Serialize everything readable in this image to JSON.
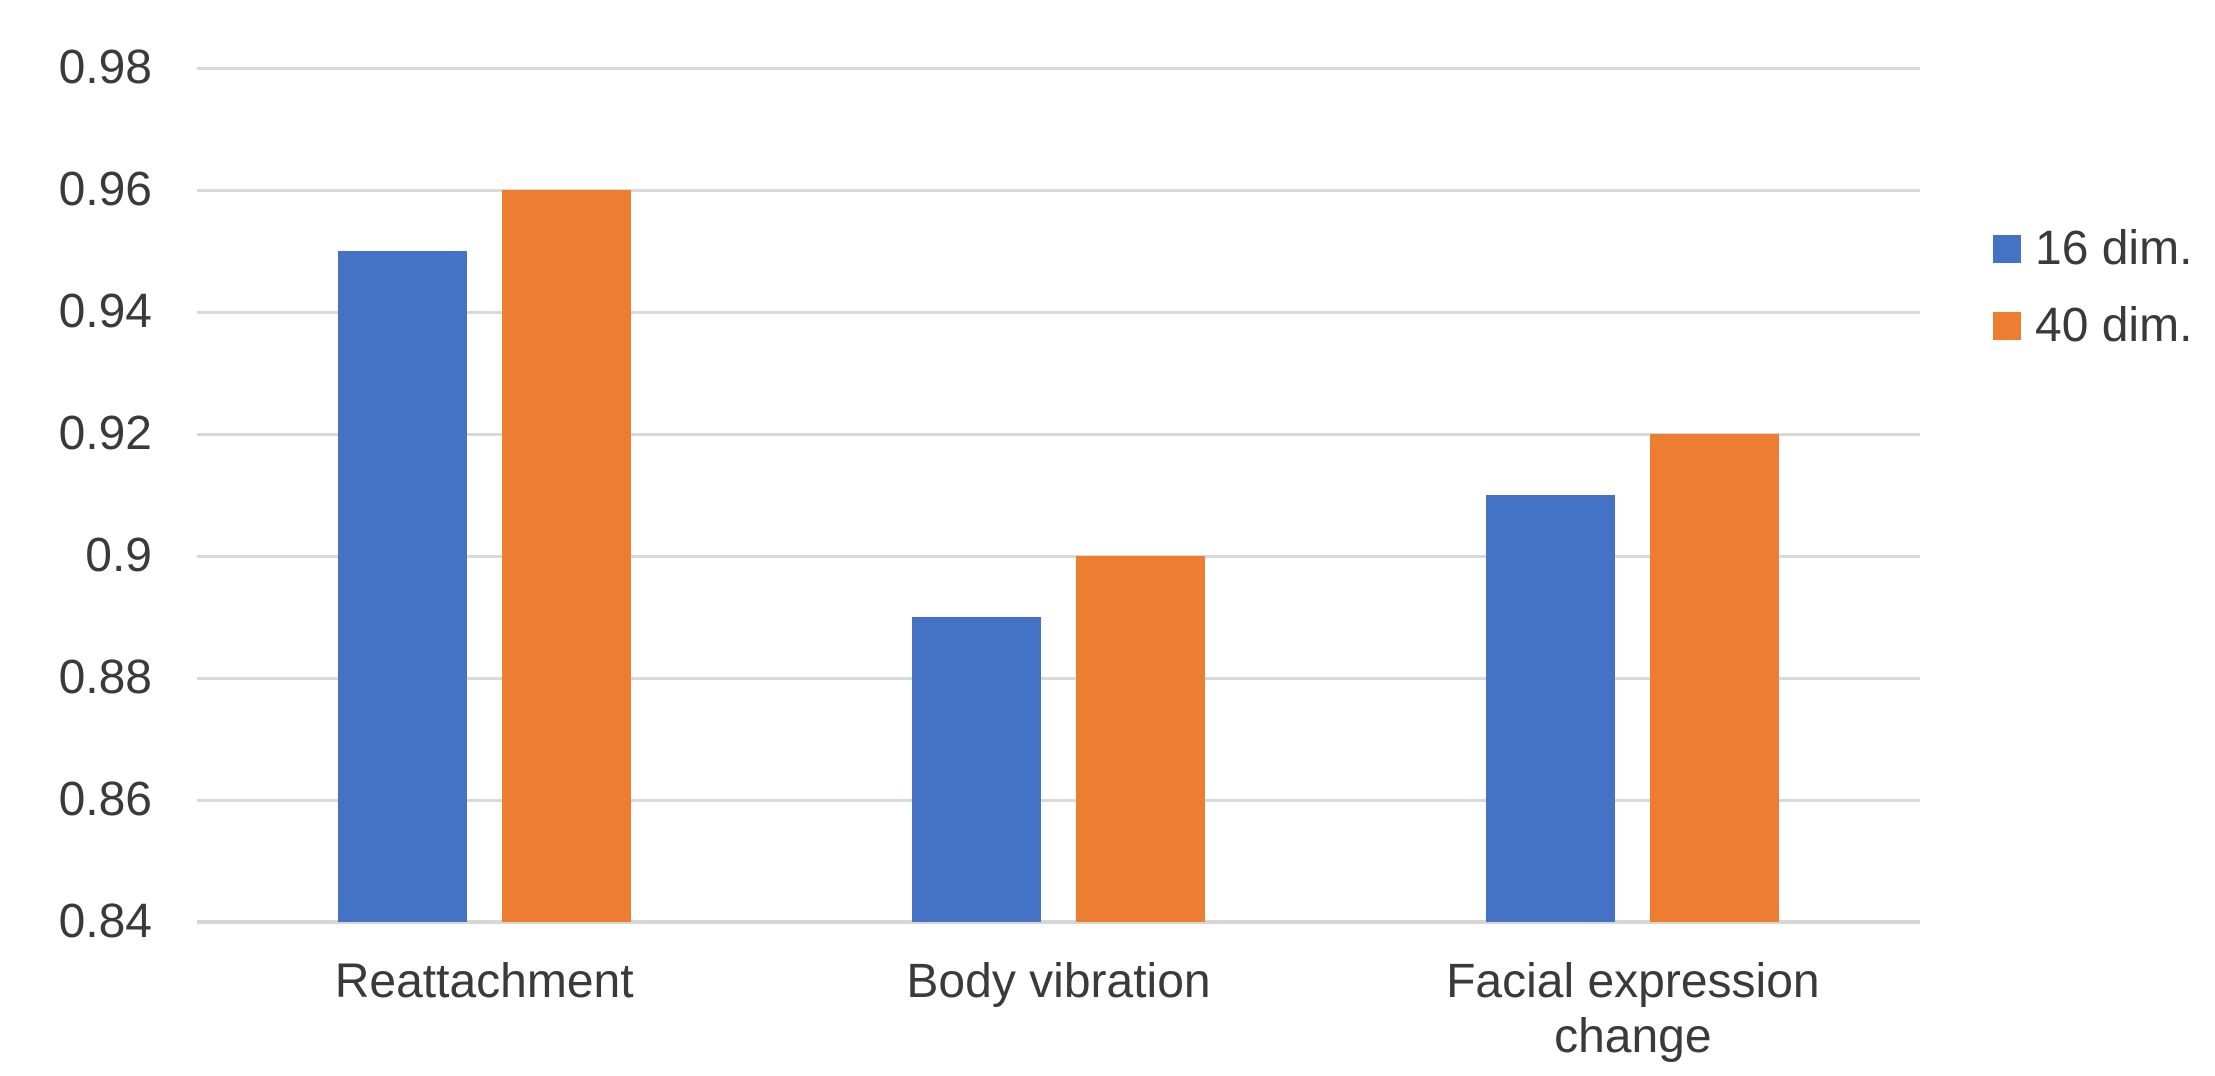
{
  "chart_data": {
    "type": "bar",
    "title": "",
    "xlabel": "",
    "ylabel": "",
    "categories": [
      "Reattachment",
      "Body vibration",
      "Facial expression change"
    ],
    "series": [
      {
        "name": "16 dim.",
        "color": "#4472C4",
        "values": [
          0.95,
          0.89,
          0.91
        ]
      },
      {
        "name": "40 dim.",
        "color": "#ED7D31",
        "values": [
          0.96,
          0.9,
          0.92
        ]
      }
    ],
    "ylim": [
      0.84,
      0.98
    ],
    "ytick_values": [
      0.84,
      0.86,
      0.88,
      0.9,
      0.92,
      0.94,
      0.96,
      0.98
    ],
    "ytick_labels": [
      "0.84",
      "0.86",
      "0.88",
      "0.9",
      "0.92",
      "0.94",
      "0.96",
      "0.98"
    ],
    "grid": true,
    "legend_position": "right",
    "gridline_color": "#D9D9D9",
    "text_color": "#3A3A3A"
  }
}
